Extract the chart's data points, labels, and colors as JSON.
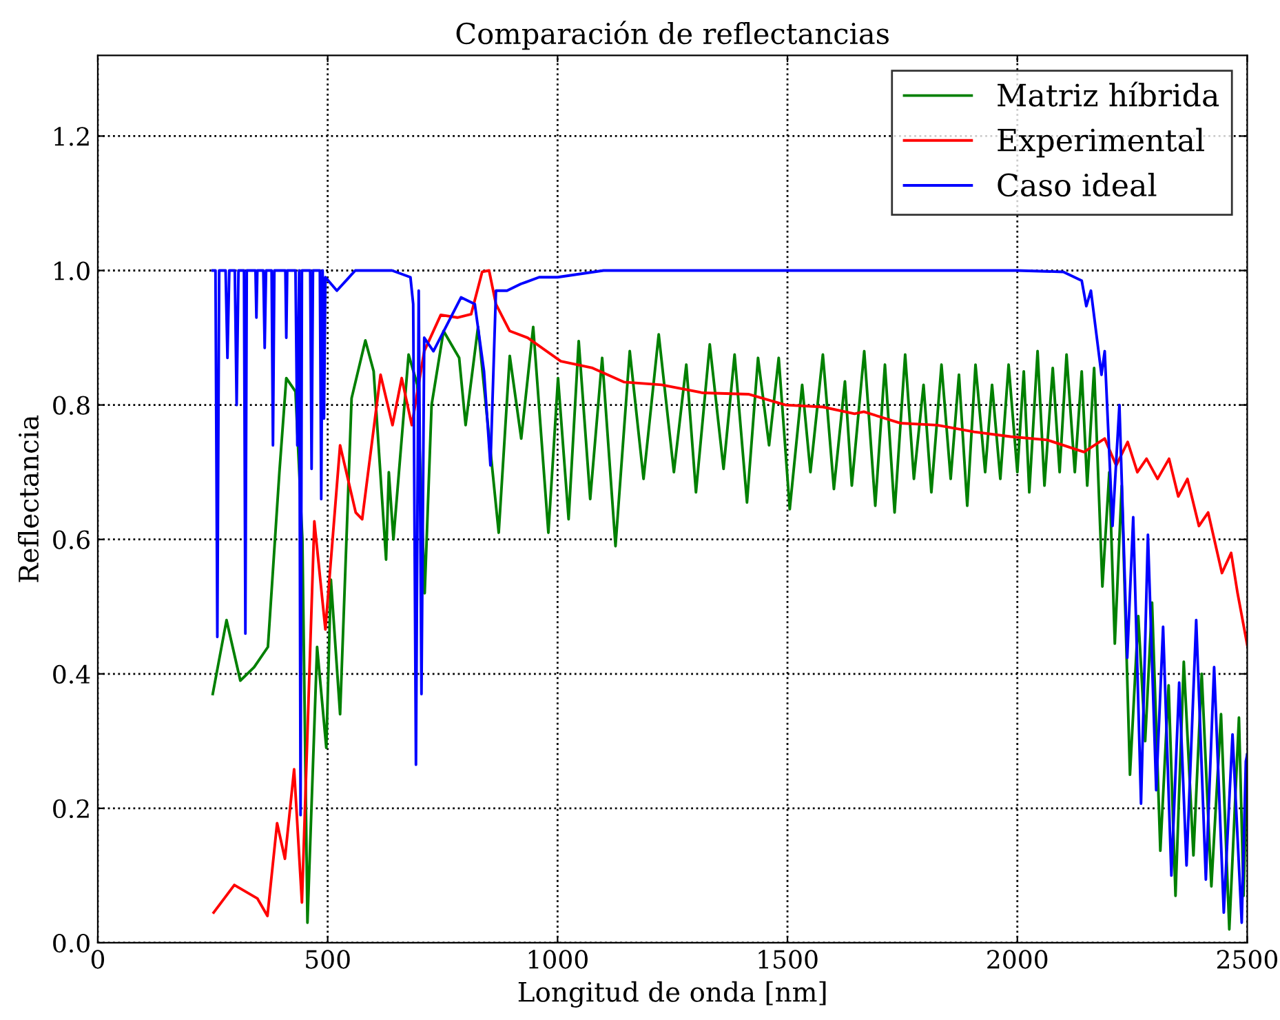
{
  "chart_data": {
    "type": "line",
    "title": "Comparación de reflectancias",
    "xlabel": "Longitud de onda [nm]",
    "ylabel": "Reflectancia",
    "xlim": [
      0,
      2500
    ],
    "ylim": [
      0,
      1.32
    ],
    "xticks": [
      0,
      500,
      1000,
      1500,
      2000,
      2500
    ],
    "yticks": [
      {
        "value": 0,
        "label": "0.0"
      },
      0.2,
      0.4,
      0.6,
      0.8,
      {
        "value": 1,
        "label": "1.0"
      },
      1.2
    ],
    "grid": true,
    "legend": "top right",
    "line_style": "solid",
    "series": [
      {
        "name": "Matriz híbrida",
        "color": "#008000",
        "x": [
          250,
          280,
          310,
          340,
          370,
          395,
          410,
          430,
          445,
          456,
          477,
          497,
          507,
          527,
          552,
          582,
          600,
          627,
          633,
          643,
          676,
          695,
          711,
          726,
          752,
          786,
          800,
          827,
          872,
          896,
          921,
          947,
          980,
          1001,
          1024,
          1046,
          1071,
          1097,
          1126,
          1157,
          1187,
          1220,
          1253,
          1280,
          1301,
          1331,
          1361,
          1385,
          1412,
          1436,
          1460,
          1481,
          1505,
          1532,
          1550,
          1577,
          1601,
          1625,
          1640,
          1667,
          1691,
          1712,
          1733,
          1756,
          1775,
          1796,
          1813,
          1835,
          1855,
          1873,
          1891,
          1909,
          1930,
          1945,
          1963,
          1981,
          2000,
          2014,
          2026,
          2044,
          2059,
          2077,
          2092,
          2107,
          2125,
          2140,
          2152,
          2167,
          2185,
          2200,
          2212,
          2227,
          2245,
          2263,
          2278,
          2293,
          2311,
          2329,
          2344,
          2362,
          2383,
          2401,
          2422,
          2443,
          2461,
          2482,
          2492,
          2500
        ],
        "values": [
          0.37,
          0.48,
          0.39,
          0.41,
          0.44,
          0.7,
          0.84,
          0.82,
          0.6,
          0.03,
          0.44,
          0.29,
          0.54,
          0.34,
          0.81,
          0.896,
          0.85,
          0.57,
          0.7,
          0.6,
          0.875,
          0.83,
          0.52,
          0.8,
          0.91,
          0.87,
          0.77,
          0.916,
          0.61,
          0.873,
          0.75,
          0.916,
          0.61,
          0.84,
          0.63,
          0.895,
          0.66,
          0.87,
          0.59,
          0.88,
          0.69,
          0.905,
          0.7,
          0.86,
          0.67,
          0.89,
          0.705,
          0.875,
          0.655,
          0.87,
          0.74,
          0.87,
          0.645,
          0.83,
          0.7,
          0.875,
          0.675,
          0.835,
          0.68,
          0.88,
          0.65,
          0.86,
          0.64,
          0.875,
          0.69,
          0.83,
          0.67,
          0.86,
          0.69,
          0.845,
          0.65,
          0.86,
          0.7,
          0.83,
          0.69,
          0.86,
          0.7,
          0.85,
          0.67,
          0.88,
          0.68,
          0.855,
          0.7,
          0.875,
          0.7,
          0.85,
          0.68,
          0.855,
          0.53,
          0.7,
          0.445,
          0.68,
          0.25,
          0.486,
          0.3,
          0.506,
          0.137,
          0.383,
          0.07,
          0.418,
          0.13,
          0.4,
          0.084,
          0.34,
          0.02,
          0.335,
          0.07,
          0.28
        ]
      },
      {
        "name": "Experimental",
        "color": "#ff0000",
        "x": [
          252,
          297,
          347,
          369,
          390,
          407,
          427,
          444,
          471,
          495,
          527,
          561,
          575,
          615,
          641,
          661,
          683,
          710,
          746,
          782,
          812,
          836,
          851,
          866,
          896,
          935,
          1007,
          1076,
          1145,
          1226,
          1316,
          1415,
          1496,
          1577,
          1646,
          1666,
          1745,
          1826,
          1906,
          1985,
          2065,
          2145,
          2190,
          2215,
          2240,
          2261,
          2281,
          2305,
          2330,
          2350,
          2370,
          2395,
          2415,
          2445,
          2465,
          2479,
          2500
        ],
        "values": [
          0.045,
          0.086,
          0.066,
          0.04,
          0.178,
          0.125,
          0.258,
          0.06,
          0.627,
          0.466,
          0.74,
          0.64,
          0.63,
          0.845,
          0.77,
          0.84,
          0.77,
          0.88,
          0.934,
          0.93,
          0.935,
          0.998,
          1.0,
          0.95,
          0.91,
          0.9,
          0.865,
          0.855,
          0.834,
          0.83,
          0.818,
          0.816,
          0.8,
          0.797,
          0.787,
          0.79,
          0.773,
          0.77,
          0.76,
          0.753,
          0.748,
          0.73,
          0.75,
          0.71,
          0.745,
          0.7,
          0.72,
          0.69,
          0.72,
          0.664,
          0.69,
          0.62,
          0.64,
          0.55,
          0.58,
          0.52,
          0.443
        ]
      },
      {
        "name": "Caso ideal",
        "color": "#0000ff",
        "x": [
          250,
          256,
          260,
          264,
          278,
          282,
          286,
          298,
          302,
          306,
          318,
          321,
          324,
          343,
          345,
          347,
          360,
          363,
          366,
          378,
          381,
          384,
          408,
          410,
          412,
          430,
          434,
          438,
          441,
          444,
          462,
          465,
          468,
          483,
          486,
          489,
          492,
          495,
          520,
          560,
          600,
          640,
          680,
          686,
          692,
          698,
          704,
          710,
          730,
          760,
          790,
          820,
          840,
          854,
          866,
          890,
          920,
          960,
          1000,
          1100,
          1500,
          2000,
          2100,
          2140,
          2150,
          2160,
          2183,
          2190,
          2207,
          2222,
          2239,
          2252,
          2269,
          2284,
          2302,
          2317,
          2335,
          2352,
          2368,
          2389,
          2410,
          2428,
          2449,
          2468,
          2488,
          2497,
          2500
        ],
        "values": [
          1.0,
          1.0,
          0.455,
          1.0,
          1.0,
          0.87,
          1.0,
          1.0,
          0.8,
          1.0,
          1.0,
          0.46,
          1.0,
          1.0,
          0.93,
          1.0,
          1.0,
          0.885,
          1.0,
          1.0,
          0.74,
          1.0,
          1.0,
          0.9,
          1.0,
          1.0,
          0.74,
          1.0,
          0.19,
          1.0,
          1.0,
          0.705,
          1.0,
          1.0,
          0.66,
          1.0,
          0.78,
          0.99,
          0.97,
          1.0,
          1.0,
          1.0,
          0.99,
          0.95,
          0.265,
          0.97,
          0.37,
          0.9,
          0.88,
          0.92,
          0.96,
          0.95,
          0.85,
          0.71,
          0.97,
          0.97,
          0.98,
          0.99,
          0.99,
          1.0,
          1.0,
          1.0,
          0.998,
          0.985,
          0.947,
          0.97,
          0.845,
          0.88,
          0.62,
          0.8,
          0.424,
          0.633,
          0.207,
          0.607,
          0.227,
          0.47,
          0.1,
          0.387,
          0.115,
          0.48,
          0.094,
          0.41,
          0.045,
          0.31,
          0.03,
          0.27,
          0.28
        ]
      }
    ]
  }
}
